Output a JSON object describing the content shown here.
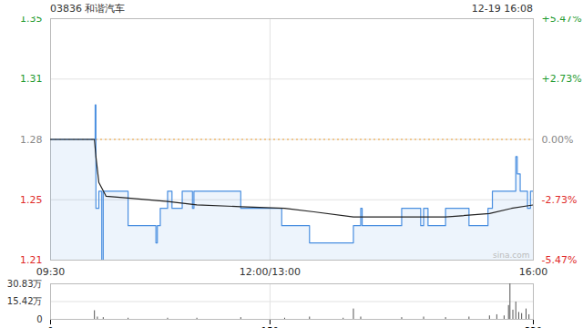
{
  "chart_data": [
    {
      "type": "line",
      "title": "03836 和谐汽车",
      "subtitle": "12-19 16:08",
      "annotations": [
        "sina.com"
      ],
      "xlim": [
        0,
        330
      ],
      "xticks": [
        {
          "value": 0,
          "label": "09:30"
        },
        {
          "value": 150,
          "label": "12:00/13:00"
        },
        {
          "value": 330,
          "label": "16:00"
        }
      ],
      "ylim": [
        1.21,
        1.35
      ],
      "yticks": [
        1.21,
        {
          "value": 1.245,
          "label": "1.25"
        },
        1.28,
        {
          "value": 1.315,
          "label": "1.31"
        },
        1.35
      ],
      "y2lim": [
        -5.47,
        5.47
      ],
      "y2ticks": [
        {
          "value": -5.47,
          "label": "-5.47%"
        },
        {
          "value": -2.73,
          "label": "-2.73%"
        },
        {
          "value": 0,
          "label": "0.00%"
        },
        {
          "value": 2.73,
          "label": "+2.73%"
        },
        {
          "value": 5.47,
          "label": "+5.47%"
        }
      ],
      "grid": true,
      "reference_line": {
        "value": 1.28,
        "color": "#f0a030",
        "line_style": "dashed"
      },
      "series": [
        {
          "type": "area",
          "color": "#4a8fe0",
          "line_style": "step",
          "x": [
            0,
            30,
            30.5,
            31,
            33,
            35,
            36,
            38,
            53,
            72,
            73,
            75,
            80,
            83,
            90,
            97,
            98,
            130,
            141,
            158,
            177,
            207,
            212,
            213,
            240,
            253,
            255,
            258,
            270,
            286,
            299,
            302,
            318,
            319,
            321,
            326,
            328,
            330
          ],
          "values": [
            1.28,
            1.28,
            1.3,
            1.24,
            1.25,
            1.21,
            1.25,
            1.25,
            1.23,
            1.22,
            1.23,
            1.24,
            1.25,
            1.24,
            1.25,
            1.24,
            1.25,
            1.24,
            1.24,
            1.23,
            1.22,
            1.23,
            1.24,
            1.23,
            1.24,
            1.23,
            1.24,
            1.23,
            1.24,
            1.23,
            1.24,
            1.25,
            1.27,
            1.26,
            1.25,
            1.24,
            1.25,
            1.25
          ]
        },
        {
          "type": "line",
          "color": "#222222",
          "line_style": "solid",
          "x": [
            0,
            30,
            31,
            33,
            38,
            53,
            80,
            100,
            130,
            160,
            180,
            207,
            240,
            270,
            300,
            315,
            330
          ],
          "values": [
            1.28,
            1.28,
            1.27,
            1.255,
            1.247,
            1.246,
            1.244,
            1.242,
            1.241,
            1.24,
            1.238,
            1.235,
            1.235,
            1.235,
            1.237,
            1.24,
            1.242
          ]
        }
      ]
    },
    {
      "type": "bar",
      "tick_labels": "y",
      "color": "#555555",
      "xlim": [
        0,
        330
      ],
      "xticks": [
        0,
        150,
        330
      ],
      "ylim": [
        0,
        30.83
      ],
      "yticks": [
        0,
        {
          "value": 15.42,
          "label": "15.42万"
        },
        {
          "value": 30.83,
          "label": "30.83万"
        }
      ],
      "grid": true,
      "x": [
        30,
        32,
        36,
        53,
        80,
        100,
        130,
        160,
        177,
        200,
        207,
        212,
        240,
        255,
        270,
        286,
        300,
        305,
        310,
        313,
        314,
        316,
        318,
        320,
        322,
        325,
        327,
        330
      ],
      "values": [
        7.5,
        2,
        1.5,
        1,
        1,
        1,
        1.5,
        1,
        2,
        1,
        9,
        2,
        1.5,
        2,
        1.5,
        2,
        3,
        4,
        3,
        12,
        30.83,
        8,
        15,
        6,
        5,
        9,
        4,
        3
      ]
    }
  ]
}
